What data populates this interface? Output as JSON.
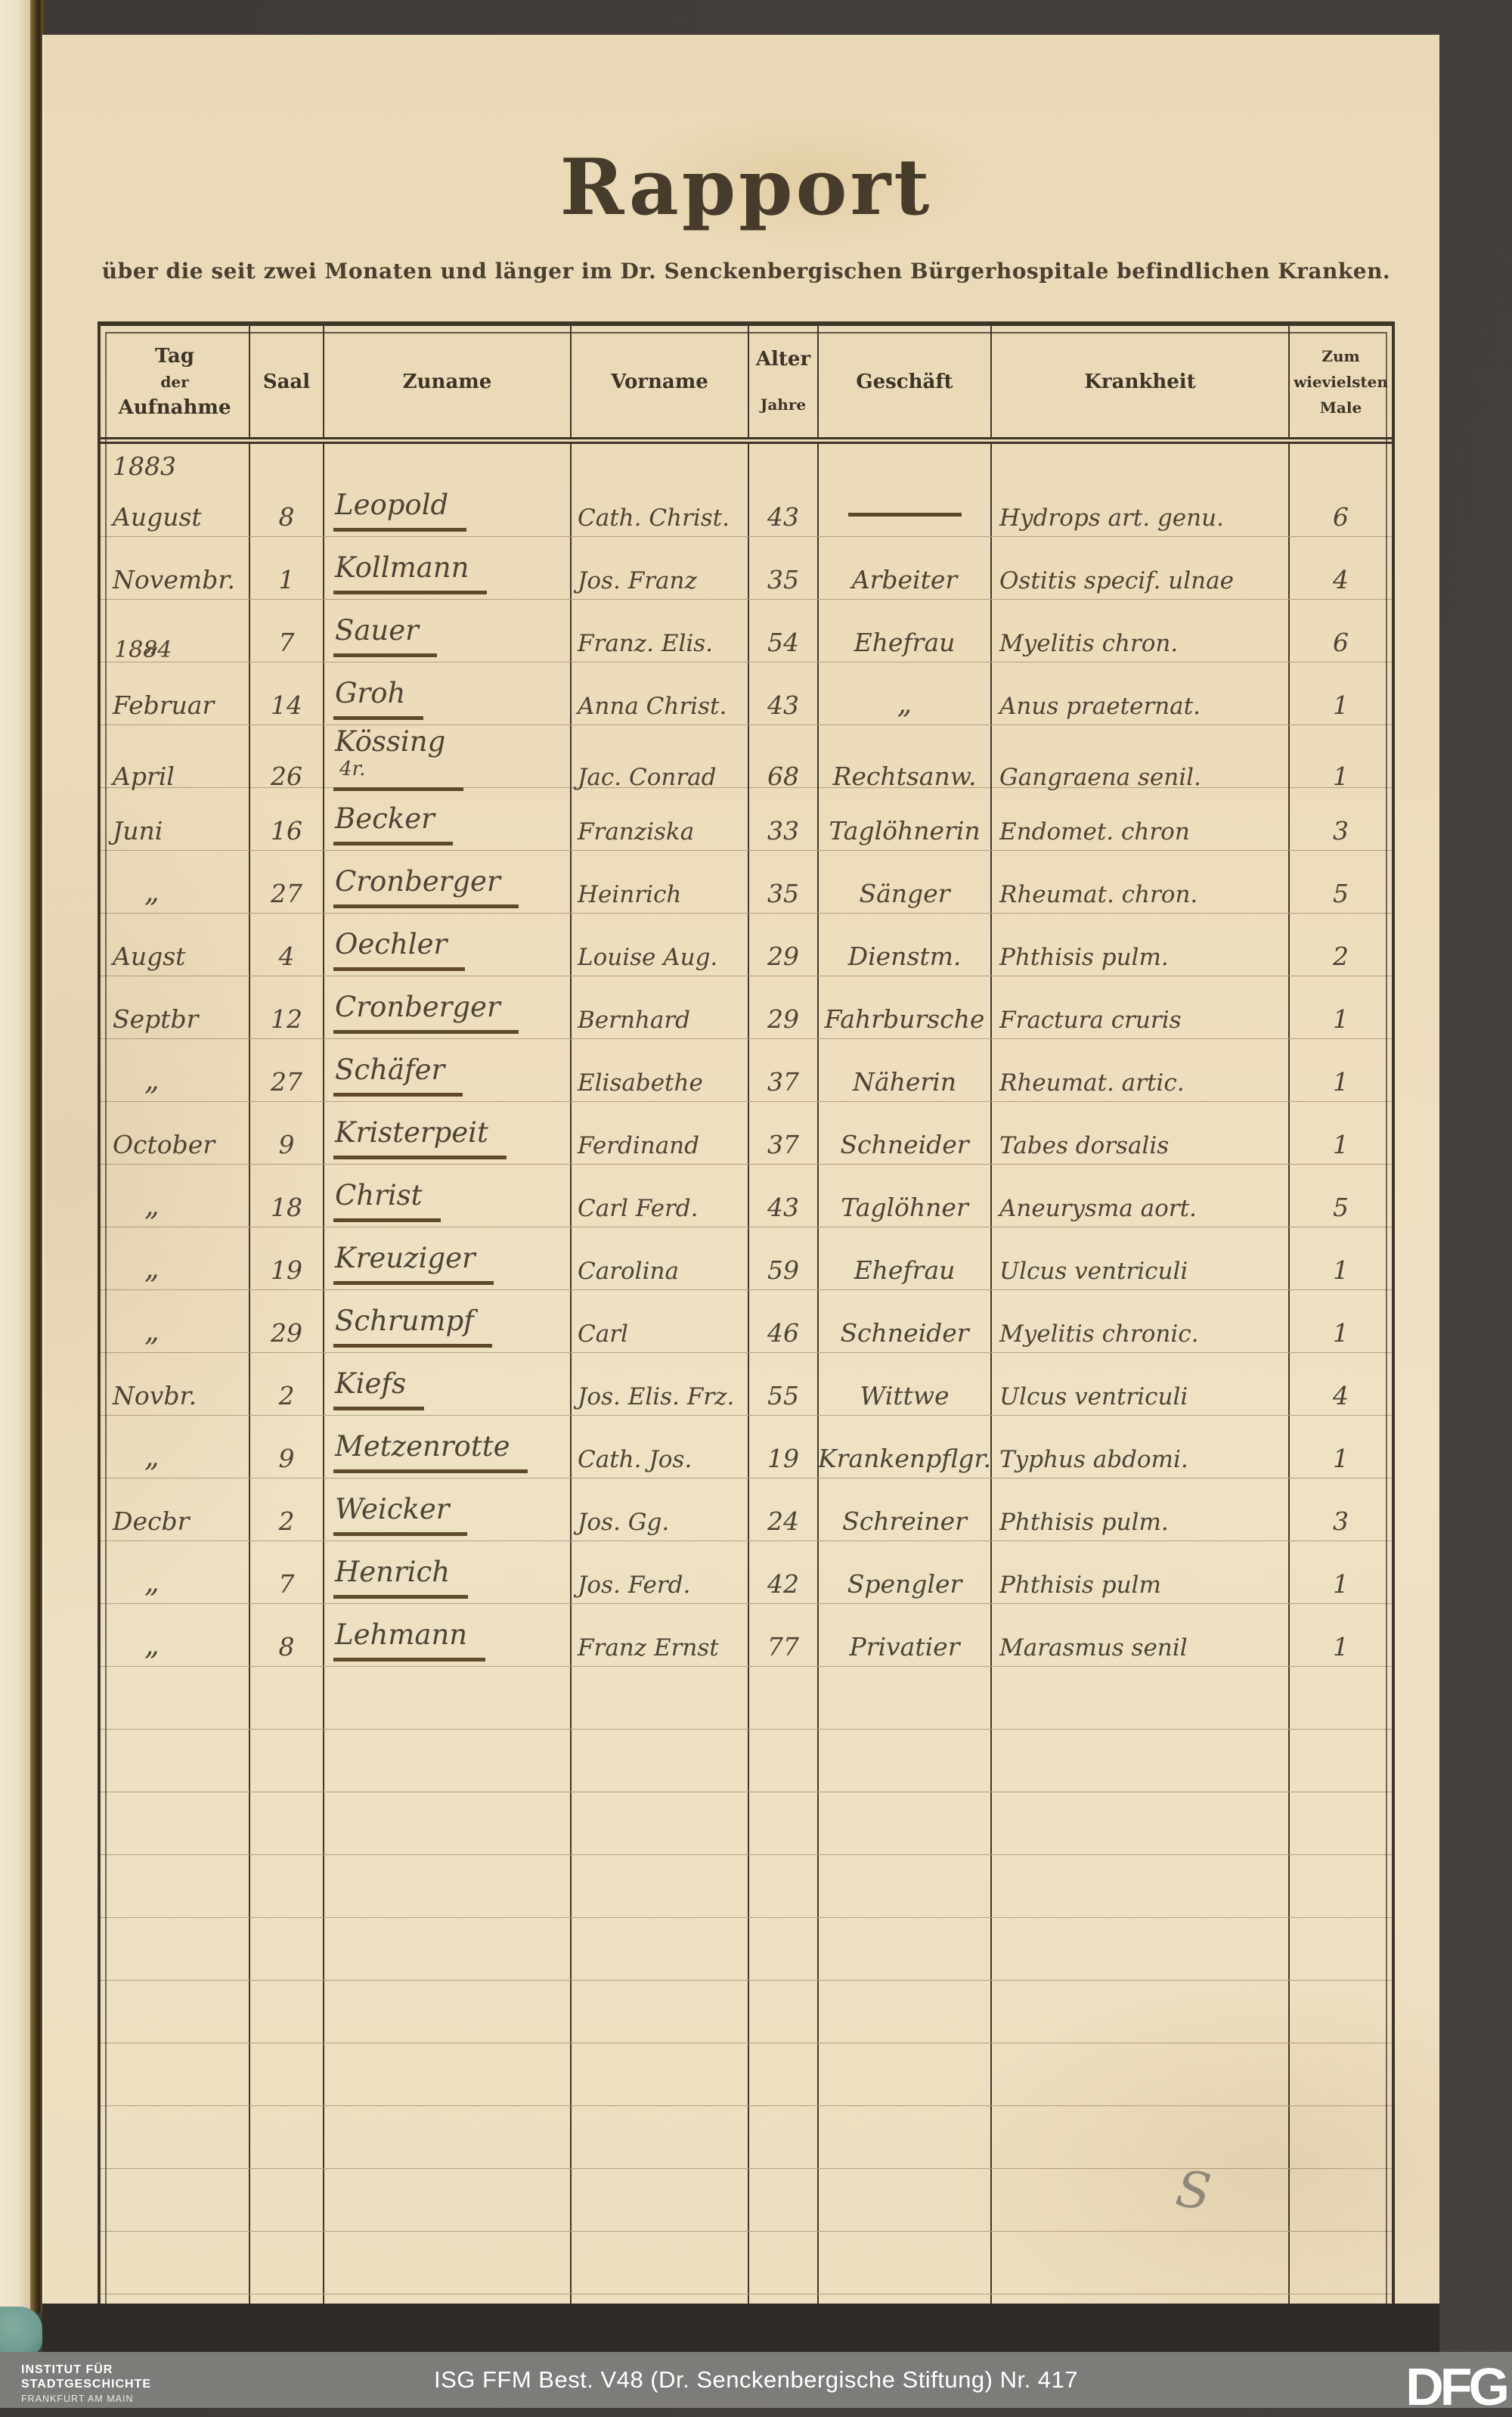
{
  "document": {
    "title": "Rapport",
    "subtitle": "über die seit zwei Monaten und länger im Dr. Senckenbergischen Bürgerhospitale befindlichen Kranken."
  },
  "table": {
    "headers": {
      "tag_lines": [
        "Tag",
        "der",
        "Aufnahme"
      ],
      "saal": "Saal",
      "zuname": "Zuname",
      "vorname": "Vorname",
      "alter": "Alter",
      "alter_sub": "Jahre",
      "geschaeft": "Geschäft",
      "krankheit": "Krankheit",
      "male_lines": [
        "Zum",
        "wievielsten",
        "Male"
      ]
    },
    "rows": [
      {
        "year": "1883",
        "tall": true,
        "month": "August",
        "saal": "8",
        "zuname": "Leopold",
        "vorname": "Cath. Christ.",
        "alter": "43",
        "geschaeft": "",
        "dash": true,
        "krankheit": "Hydrops art. genu.",
        "male": "6"
      },
      {
        "month": "Novembr.",
        "saal": "1",
        "zuname": "Kollmann",
        "vorname": "Jos. Franz",
        "alter": "35",
        "geschaeft": "Arbeiter",
        "krankheit": "Ostitis specif. ulnae",
        "male": "4"
      },
      {
        "month": "„",
        "saal": "7",
        "zuname": "Sauer",
        "vorname": "Franz. Elis.",
        "alter": "54",
        "geschaeft": "Ehefrau",
        "krankheit": "Myelitis chron.",
        "male": "6"
      },
      {
        "year": "1884",
        "month": "Februar",
        "saal": "14",
        "zuname": "Groh",
        "vorname": "Anna Christ.",
        "alter": "43",
        "geschaeft": "„",
        "krankheit": "Anus praeternat.",
        "male": "1"
      },
      {
        "month": "April",
        "saal": "26",
        "zuname": "Kössing",
        "zuname_suffix": "4r.",
        "vorname": "Jac. Conrad",
        "alter": "68",
        "geschaeft": "Rechtsanw.",
        "krankheit": "Gangraena senil.",
        "male": "1"
      },
      {
        "month": "Juni",
        "saal": "16",
        "zuname": "Becker",
        "vorname": "Franziska",
        "alter": "33",
        "geschaeft": "Taglöhnerin",
        "krankheit": "Endomet. chron",
        "male": "3"
      },
      {
        "month": "„",
        "saal": "27",
        "zuname": "Cronberger",
        "vorname": "Heinrich",
        "alter": "35",
        "geschaeft": "Sänger",
        "krankheit": "Rheumat. chron.",
        "male": "5"
      },
      {
        "month": "Augst",
        "saal": "4",
        "zuname": "Oechler",
        "vorname": "Louise Aug.",
        "alter": "29",
        "geschaeft": "Dienstm.",
        "krankheit": "Phthisis pulm.",
        "male": "2"
      },
      {
        "month": "Septbr",
        "saal": "12",
        "zuname": "Cronberger",
        "vorname": "Bernhard",
        "alter": "29",
        "geschaeft": "Fahrbursche",
        "krankheit": "Fractura cruris",
        "male": "1"
      },
      {
        "month": "„",
        "saal": "27",
        "zuname": "Schäfer",
        "vorname": "Elisabethe",
        "alter": "37",
        "geschaeft": "Näherin",
        "krankheit": "Rheumat. artic.",
        "male": "1"
      },
      {
        "month": "October",
        "saal": "9",
        "zuname": "Kristerpeit",
        "vorname": "Ferdinand",
        "alter": "37",
        "geschaeft": "Schneider",
        "krankheit": "Tabes dorsalis",
        "male": "1"
      },
      {
        "month": "„",
        "saal": "18",
        "zuname": "Christ",
        "vorname": "Carl Ferd.",
        "alter": "43",
        "geschaeft": "Taglöhner",
        "krankheit": "Aneurysma aort.",
        "male": "5"
      },
      {
        "month": "„",
        "saal": "19",
        "zuname": "Kreuziger",
        "vorname": "Carolina",
        "alter": "59",
        "geschaeft": "Ehefrau",
        "krankheit": "Ulcus ventriculi",
        "male": "1"
      },
      {
        "month": "„",
        "saal": "29",
        "zuname": "Schrumpf",
        "vorname": "Carl",
        "alter": "46",
        "geschaeft": "Schneider",
        "krankheit": "Myelitis chronic.",
        "male": "1"
      },
      {
        "month": "Novbr.",
        "saal": "2",
        "zuname": "Kiefs",
        "vorname": "Jos. Elis. Frz.",
        "alter": "55",
        "geschaeft": "Wittwe",
        "krankheit": "Ulcus ventriculi",
        "male": "4"
      },
      {
        "month": "„",
        "saal": "9",
        "zuname": "Metzenrotte",
        "vorname": "Cath. Jos.",
        "alter": "19",
        "geschaeft": "Krankenpflgr.",
        "krankheit": "Typhus abdomi.",
        "male": "1"
      },
      {
        "month": "Decbr",
        "saal": "2",
        "zuname": "Weicker",
        "vorname": "Jos. Gg.",
        "alter": "24",
        "geschaeft": "Schreiner",
        "krankheit": "Phthisis pulm.",
        "male": "3"
      },
      {
        "month": "„",
        "saal": "7",
        "zuname": "Henrich",
        "vorname": "Jos. Ferd.",
        "alter": "42",
        "geschaeft": "Spengler",
        "krankheit": "Phthisis pulm",
        "male": "1"
      },
      {
        "month": "„",
        "saal": "8",
        "zuname": "Lehmann",
        "vorname": "Franz Ernst",
        "alter": "77",
        "geschaeft": "Privatier",
        "krankheit": "Marasmus senil",
        "male": "1"
      }
    ],
    "empty_row_count": 12
  },
  "annotations": {
    "pencil_mark": "S"
  },
  "footer": {
    "institute_lines": [
      "INSTITUT FÜR",
      "STADTGESCHICHTE",
      "FRANKFURT AM MAIN"
    ],
    "reference": "ISG FFM Best. V48 (Dr. Senckenbergische Stiftung) Nr. 417",
    "logo": "DFG",
    "bar_color": "#7e7c79"
  },
  "colors": {
    "paper": "#ecdcbb",
    "ink": "#4e4335",
    "table_border": "#3f3529",
    "hairline": "#7a664c",
    "scan_background": "#403d3a",
    "binding_cloth": "#6f9e92"
  }
}
